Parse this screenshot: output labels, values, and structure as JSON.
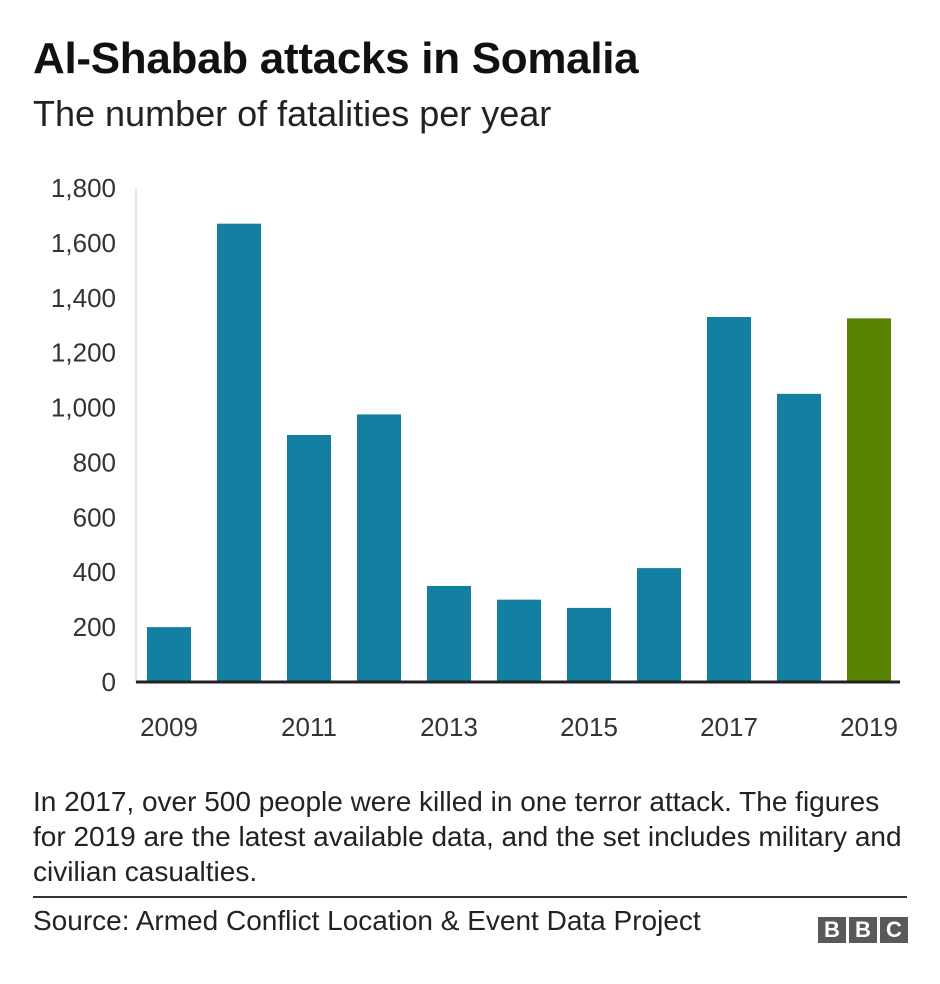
{
  "header": {
    "title": "Al-Shabab attacks in Somalia",
    "subtitle": "The number of fatalities per year"
  },
  "chart_data": {
    "type": "bar",
    "title": "Al-Shabab attacks in Somalia",
    "subtitle": "The number of fatalities per year",
    "xlabel": "",
    "ylabel": "",
    "categories": [
      "2009",
      "2010",
      "2011",
      "2012",
      "2013",
      "2014",
      "2015",
      "2016",
      "2017",
      "2018",
      "2019"
    ],
    "values": [
      200,
      1670,
      900,
      975,
      350,
      300,
      270,
      415,
      1330,
      1050,
      1325
    ],
    "x_tick_labels": [
      "2009",
      "",
      "2011",
      "",
      "2013",
      "",
      "2015",
      "",
      "2017",
      "",
      "2019"
    ],
    "y_ticks": [
      0,
      200,
      400,
      600,
      800,
      1000,
      1200,
      1400,
      1600,
      1800
    ],
    "y_tick_labels": [
      "0",
      "200",
      "400",
      "600",
      "800",
      "1,000",
      "1,200",
      "1,400",
      "1,600",
      "1,800"
    ],
    "ylim": [
      0,
      1800
    ],
    "grid": false,
    "legend": "none",
    "colors": {
      "bar": "#1380a1",
      "highlight": "#588300",
      "axis": "#222222"
    },
    "highlighted_category": "2019"
  },
  "footer": {
    "note": "In 2017, over 500 people were killed in one terror attack. The figures for 2019 are the latest available data, and the set includes military and civilian casualties.",
    "source": "Source: Armed Conflict Location & Event Data Project",
    "logo_letters": [
      "B",
      "B",
      "C"
    ]
  }
}
